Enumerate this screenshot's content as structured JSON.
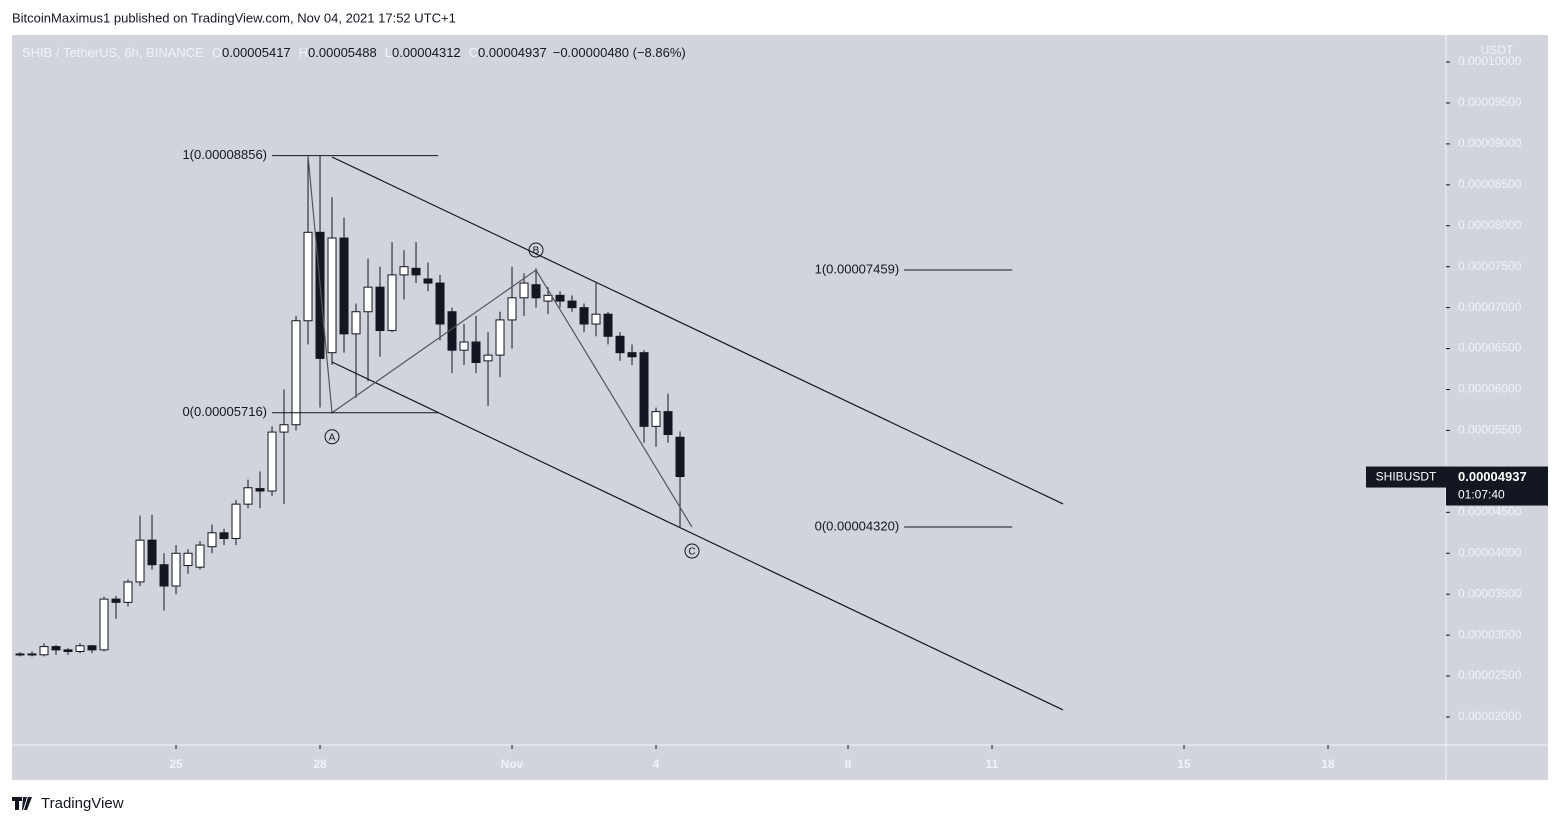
{
  "publish_line": "BitcoinMaximus1 published on TradingView.com, Nov 04, 2021 17:52 UTC+1",
  "footer": "TradingView",
  "chart_data": {
    "type": "candlestick",
    "header": {
      "symbol": "SHIB / TetherUS, 6h, BINANCE",
      "ohlc": [
        {
          "label": "O",
          "value": "0.00005417"
        },
        {
          "label": "H",
          "value": "0.00005488"
        },
        {
          "label": "L",
          "value": "0.00004312"
        },
        {
          "label": "C",
          "value": "0.00004937"
        }
      ],
      "change": "−0.00000480 (−8.86%)"
    },
    "axis_unit": "USDT",
    "x": [
      21.75,
      22,
      22.25,
      22.5,
      22.75,
      23,
      23.25,
      23.5,
      23.75,
      24,
      24.25,
      24.5,
      24.75,
      25,
      25.25,
      25.5,
      25.75,
      26,
      26.25,
      26.5,
      26.75,
      27,
      27.25,
      27.5,
      27.75,
      28,
      28.25,
      28.5,
      28.75,
      29,
      29.25,
      29.5,
      29.75,
      30,
      30.25,
      30.5,
      30.75,
      31,
      31.25,
      31.5,
      31.75,
      32,
      32.25,
      32.5,
      32.75,
      33,
      33.25,
      33.5,
      33.75,
      34,
      34.25,
      34.5,
      34.75,
      35,
      35.25,
      35.5
    ],
    "open": [
      2.76e-05,
      2.77e-05,
      2.76e-05,
      2.86e-05,
      2.82e-05,
      2.8e-05,
      2.87e-05,
      2.82e-05,
      3.44e-05,
      3.4e-05,
      3.65e-05,
      4.16e-05,
      3.86e-05,
      3.6e-05,
      3.85e-05,
      3.83e-05,
      4.08e-05,
      4.25e-05,
      4.18e-05,
      4.6e-05,
      4.79e-05,
      4.76e-05,
      5.48e-05,
      5.57e-05,
      6.84e-05,
      7.92e-05,
      6.45e-05,
      7.85e-05,
      6.68e-05,
      6.95e-05,
      7.25e-05,
      6.72e-05,
      7.4e-05,
      7.48e-05,
      7.35e-05,
      7.3e-05,
      6.95e-05,
      6.48e-05,
      6.58e-05,
      6.35e-05,
      6.42e-05,
      6.85e-05,
      7.12e-05,
      7.28e-05,
      7.08e-05,
      7.15e-05,
      7.08e-05,
      7e-05,
      6.8e-05,
      6.92e-05,
      6.65e-05,
      6.45e-05,
      6.45e-05,
      5.55e-05,
      5.73e-05,
      5.417e-05
    ],
    "high": [
      2.79e-05,
      2.8e-05,
      2.9e-05,
      2.88e-05,
      2.84e-05,
      2.9e-05,
      2.88e-05,
      3.47e-05,
      3.48e-05,
      3.68e-05,
      4.46e-05,
      4.47e-05,
      4e-05,
      4.1e-05,
      4.05e-05,
      4.15e-05,
      4.35e-05,
      4.3e-05,
      4.65e-05,
      4.9e-05,
      5e-05,
      5.55e-05,
      6e-05,
      6.9e-05,
      8.86e-05,
      8.86e-05,
      8.35e-05,
      8.1e-05,
      7.05e-05,
      7.6e-05,
      7.5e-05,
      7.8e-05,
      7.7e-05,
      7.8e-05,
      7.55e-05,
      7.4e-05,
      7e-05,
      6.8e-05,
      6.9e-05,
      6.7e-05,
      6.95e-05,
      7.5e-05,
      7.42e-05,
      7.48e-05,
      7.25e-05,
      7.2e-05,
      7.15e-05,
      7.05e-05,
      7.3e-05,
      6.95e-05,
      6.7e-05,
      6.55e-05,
      6.48e-05,
      5.78e-05,
      5.95e-05,
      5.488e-05
    ],
    "low": [
      2.74e-05,
      2.74e-05,
      2.74e-05,
      2.76e-05,
      2.76e-05,
      2.78e-05,
      2.78e-05,
      2.8e-05,
      3.2e-05,
      3.35e-05,
      3.6e-05,
      3.8e-05,
      3.3e-05,
      3.5e-05,
      3.75e-05,
      3.8e-05,
      4e-05,
      4.1e-05,
      4.1e-05,
      4.55e-05,
      4.55e-05,
      4.7e-05,
      4.6e-05,
      5.5e-05,
      6.55e-05,
      5.78e-05,
      6.3e-05,
      6.45e-05,
      5.9e-05,
      6.1e-05,
      6.4e-05,
      6.7e-05,
      7.1e-05,
      7.3e-05,
      7.2e-05,
      6.6e-05,
      6.2e-05,
      6.3e-05,
      6.2e-05,
      5.8e-05,
      6.15e-05,
      6.5e-05,
      6.9e-05,
      7e-05,
      6.92e-05,
      7e-05,
      6.95e-05,
      6.7e-05,
      6.65e-05,
      6.55e-05,
      6.35e-05,
      6.3e-05,
      5.35e-05,
      5.3e-05,
      5.35e-05,
      4.312e-05
    ],
    "close": [
      2.77e-05,
      2.76e-05,
      2.86e-05,
      2.82e-05,
      2.8e-05,
      2.87e-05,
      2.82e-05,
      3.44e-05,
      3.4e-05,
      3.65e-05,
      4.16e-05,
      3.86e-05,
      3.6e-05,
      4e-05,
      4e-05,
      4.1e-05,
      4.25e-05,
      4.18e-05,
      4.6e-05,
      4.8e-05,
      4.76e-05,
      5.48e-05,
      5.57e-05,
      6.84e-05,
      7.92e-05,
      6.38e-05,
      7.85e-05,
      6.68e-05,
      6.95e-05,
      7.25e-05,
      6.72e-05,
      7.4e-05,
      7.5e-05,
      7.4e-05,
      7.3e-05,
      6.8e-05,
      6.48e-05,
      6.58e-05,
      6.33e-05,
      6.42e-05,
      6.85e-05,
      7.12e-05,
      7.3e-05,
      7.12e-05,
      7.15e-05,
      7.08e-05,
      7e-05,
      6.8e-05,
      6.92e-05,
      6.65e-05,
      6.45e-05,
      6.4e-05,
      5.55e-05,
      5.73e-05,
      5.45e-05,
      4.937e-05
    ],
    "up_color": "#ffffff",
    "down_color": "#131722",
    "xlim": [
      21.583,
      51.458
    ],
    "xticks": [
      {
        "value": 25,
        "label": "25"
      },
      {
        "value": 28,
        "label": "28"
      },
      {
        "value": 32,
        "label": "Nov"
      },
      {
        "value": 35,
        "label": "4"
      },
      {
        "value": 39,
        "label": "8"
      },
      {
        "value": 42,
        "label": "11"
      },
      {
        "value": 46,
        "label": "15"
      },
      {
        "value": 49,
        "label": "18"
      }
    ],
    "ylim": [
      1.658e-05,
      0.0001033
    ],
    "yticks": [
      {
        "value": 2e-05,
        "label": "0.00002000"
      },
      {
        "value": 2.5e-05,
        "label": "0.00002500"
      },
      {
        "value": 3e-05,
        "label": "0.00003000"
      },
      {
        "value": 3.5e-05,
        "label": "0.00003500"
      },
      {
        "value": 4e-05,
        "label": "0.00004000"
      },
      {
        "value": 4.5e-05,
        "label": "0.00004500"
      },
      {
        "value": 5e-05,
        "label": "0.00005000"
      },
      {
        "value": 5.5e-05,
        "label": "0.00005500"
      },
      {
        "value": 6e-05,
        "label": "0.00006000"
      },
      {
        "value": 6.5e-05,
        "label": "0.00006500"
      },
      {
        "value": 7e-05,
        "label": "0.00007000"
      },
      {
        "value": 7.5e-05,
        "label": "0.00007500"
      },
      {
        "value": 8e-05,
        "label": "0.00008000"
      },
      {
        "value": 8.5e-05,
        "label": "0.00008500"
      },
      {
        "value": 9e-05,
        "label": "0.00009000"
      },
      {
        "value": 9.5e-05,
        "label": "0.00009500"
      },
      {
        "value": 0.0001,
        "label": "0.00010000"
      }
    ],
    "grid": false,
    "last_price": {
      "symbol": "SHIBUSDT",
      "value": 4.937e-05,
      "label": "0.00004937",
      "countdown": "01:07:40"
    },
    "fib_levels": [
      {
        "label": "1(0.00008856)",
        "value": 8.856e-05,
        "x": [
          27.0,
          30.46
        ]
      },
      {
        "label": "0(0.00005716)",
        "value": 5.716e-05,
        "x": [
          27.0,
          30.46
        ]
      },
      {
        "label": "1(0.00007459)",
        "value": 7.459e-05,
        "x": [
          40.17,
          42.42
        ]
      },
      {
        "label": "0(0.00004320)",
        "value": 4.32e-05,
        "x": [
          40.17,
          42.42
        ]
      }
    ],
    "zigzag": {
      "x": [
        27.75,
        28.25,
        32.5,
        35.75
      ],
      "y": [
        8.856e-05,
        5.716e-05,
        7.459e-05,
        4.32e-05
      ]
    },
    "waves": [
      {
        "label": "A",
        "x": 28.25,
        "y": 5.716e-05
      },
      {
        "label": "B",
        "x": 32.5,
        "y": 7.459e-05
      },
      {
        "label": "C",
        "x": 35.75,
        "y": 4.32e-05
      }
    ],
    "channel": [
      {
        "x": [
          28.25,
          43.48
        ],
        "y": [
          8.84e-05,
          4.602e-05
        ]
      },
      {
        "x": [
          28.25,
          43.48
        ],
        "y": [
          6.336e-05,
          2.086e-05
        ]
      }
    ]
  }
}
